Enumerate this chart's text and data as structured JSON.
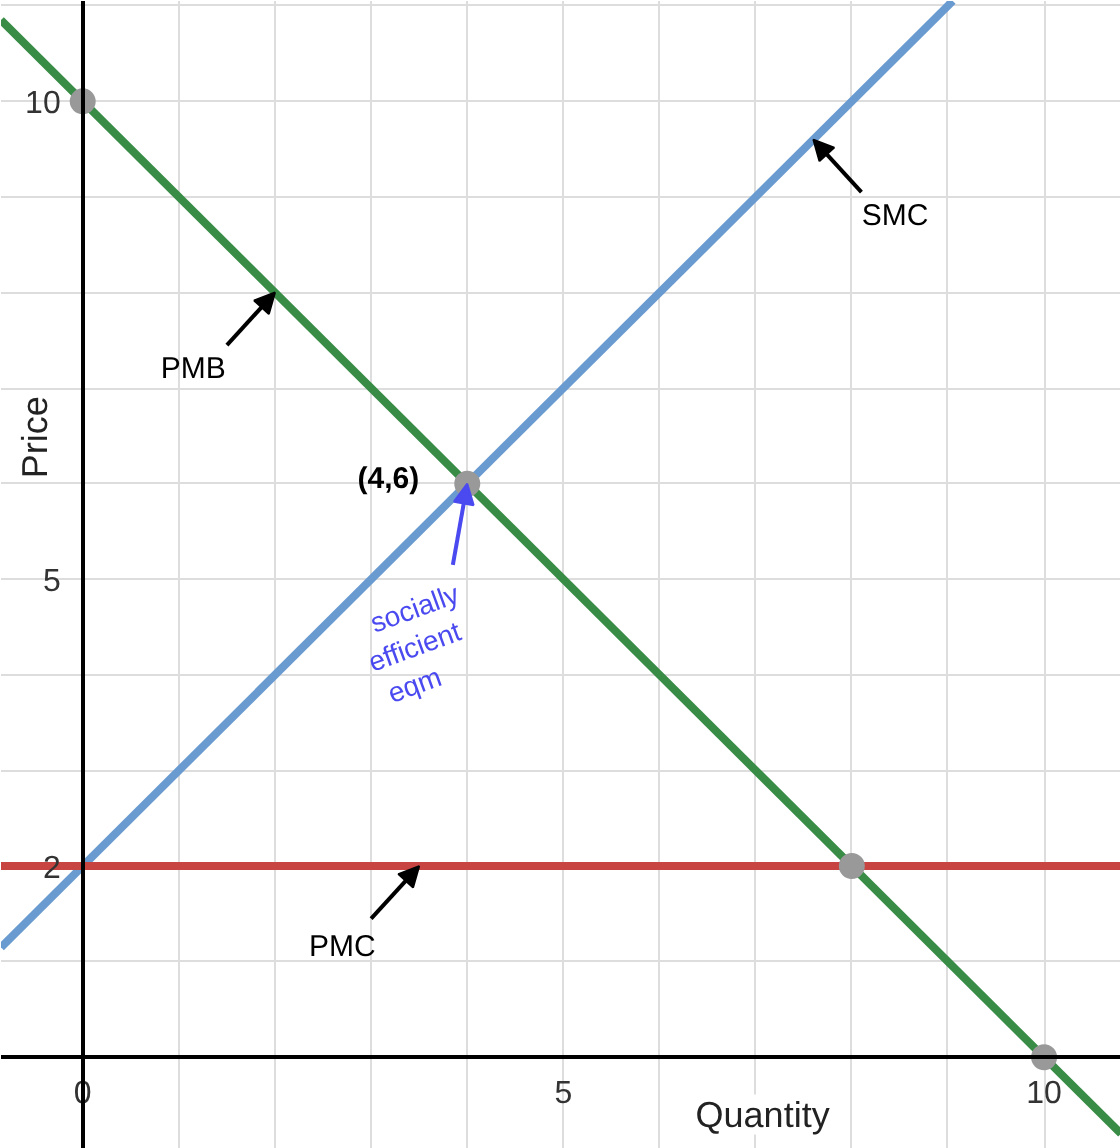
{
  "chart_data": {
    "type": "line",
    "xlabel": "Quantity",
    "ylabel": "Price",
    "xlim": [
      -0.85,
      10.8
    ],
    "ylim": [
      -0.96,
      11.05
    ],
    "xticks": [
      0,
      5,
      10
    ],
    "yticks": [
      2,
      5,
      10
    ],
    "grid": true,
    "marker": "none",
    "line_style": "solid",
    "series": [
      {
        "color": "#388c46",
        "x": [
          -0.85,
          10.8
        ],
        "values": [
          10.85,
          -0.8
        ]
      },
      {
        "color": "#6a9bd0",
        "x": [
          -0.85,
          9.05
        ],
        "values": [
          1.15,
          11.05
        ]
      },
      {
        "color": "#c74440",
        "x": [
          -0.85,
          10.8
        ],
        "values": [
          2,
          2
        ]
      },
      {
        "type": "scatter",
        "color": "#999999",
        "marker": "circle",
        "x": [
          0,
          4,
          8,
          10
        ],
        "values": [
          10,
          6,
          2,
          0
        ]
      }
    ],
    "annotations": [
      {
        "text": "PMB",
        "x": 2,
        "y": 8
      },
      {
        "text": "SMC",
        "x": 7.6,
        "y": 9.6
      },
      {
        "text": "PMC",
        "x": 3.5,
        "y": 2
      },
      {
        "text": "(4,6)",
        "x": 4,
        "y": 6
      },
      {
        "text": "socially efficient eqm",
        "x": 4,
        "y": 6
      }
    ]
  }
}
